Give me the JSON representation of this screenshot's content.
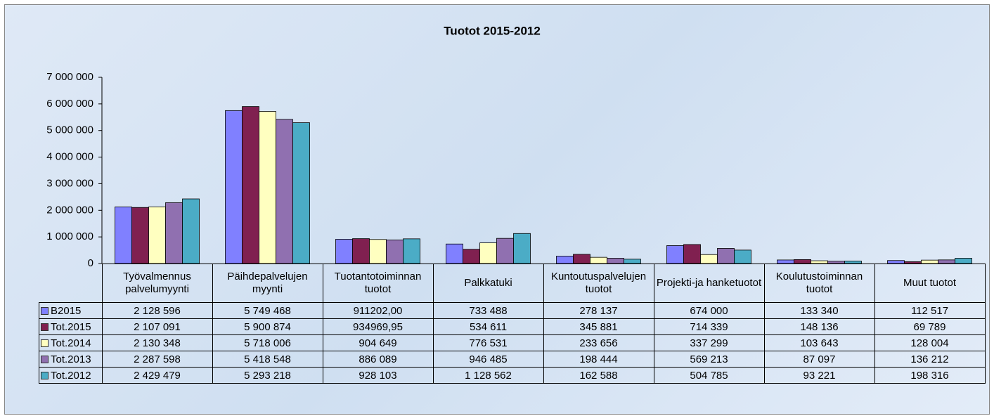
{
  "chart_data": {
    "type": "bar",
    "title": "Tuotot 2015-2012",
    "categories": [
      "Työvalmennus palvelumyynti",
      "Päihdepalvelujen myynti",
      "Tuotantotoiminnan tuotot",
      "Palkkatuki",
      "Kuntoutuspalvelujen tuotot",
      "Projekti-ja hanketuotot",
      "Koulutustoiminnan tuotot",
      "Muut tuotot"
    ],
    "series": [
      {
        "name": "B2015",
        "color": "#8080ff",
        "values": [
          2128596,
          5749468,
          911202.0,
          733488,
          278137,
          674000,
          133340,
          112517
        ],
        "value_labels": [
          "2 128 596",
          "5 749 468",
          "911202,00",
          "733 488",
          "278 137",
          "674 000",
          "133 340",
          "112 517"
        ]
      },
      {
        "name": "Tot.2015",
        "color": "#802050",
        "values": [
          2107091,
          5900874,
          934969.95,
          534611,
          345881,
          714339,
          148136,
          69789
        ],
        "value_labels": [
          "2 107 091",
          "5 900 874",
          "934969,95",
          "534 611",
          "345 881",
          "714 339",
          "148 136",
          "69 789"
        ]
      },
      {
        "name": "Tot.2014",
        "color": "#ffffc0",
        "values": [
          2130348,
          5718006,
          904649,
          776531,
          233656,
          337299,
          103643,
          128004
        ],
        "value_labels": [
          "2 130 348",
          "5 718 006",
          "904 649",
          "776 531",
          "233 656",
          "337 299",
          "103 643",
          "128 004"
        ]
      },
      {
        "name": "Tot.2013",
        "color": "#9070b0",
        "values": [
          2287598,
          5418548,
          886089,
          946485,
          198444,
          569213,
          87097,
          136212
        ],
        "value_labels": [
          "2 287 598",
          "5 418 548",
          "886 089",
          "946 485",
          "198 444",
          "569 213",
          "87 097",
          "136 212"
        ]
      },
      {
        "name": "Tot.2012",
        "color": "#4bacc6",
        "values": [
          2429479,
          5293218,
          928103,
          1128562,
          162588,
          504785,
          93221,
          198316
        ],
        "value_labels": [
          "2 429 479",
          "5 293 218",
          "928 103",
          "1 128 562",
          "162 588",
          "504 785",
          "93 221",
          "198 316"
        ]
      }
    ],
    "ylim": [
      0,
      7000000
    ],
    "yticks": [
      0,
      {
        "value": 1000000,
        "label": "1 000 000"
      },
      {
        "value": 2000000,
        "label": "2 000 000"
      },
      {
        "value": 3000000,
        "label": "3 000 000"
      },
      {
        "value": 4000000,
        "label": "4 000 000"
      },
      {
        "value": 5000000,
        "label": "5 000 000"
      },
      {
        "value": 6000000,
        "label": "6 000 000"
      },
      {
        "value": 7000000,
        "label": "7 000 000"
      }
    ],
    "grid": false
  }
}
